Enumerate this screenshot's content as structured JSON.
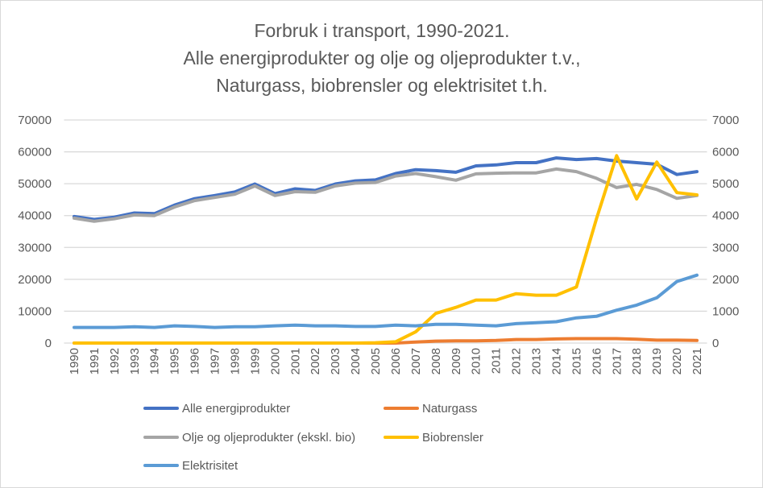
{
  "chart_data": {
    "type": "line",
    "title": [
      "Forbruk i transport, 1990-2021.",
      "Alle energiprodukter og olje og oljeprodukter t.v.,",
      "Naturgass, biobrensler og elektrisitet t.h."
    ],
    "categories": [
      "1990",
      "1991",
      "1992",
      "1993",
      "1994",
      "1995",
      "1996",
      "1997",
      "1998",
      "1999",
      "2000",
      "2001",
      "2002",
      "2003",
      "2004",
      "2005",
      "2006",
      "2007",
      "2008",
      "2009",
      "2010",
      "2011",
      "2012",
      "2013",
      "2014",
      "2015",
      "2016",
      "2017",
      "2018",
      "2019",
      "2020",
      "2021"
    ],
    "y_left": {
      "range": [
        0,
        70000
      ],
      "ticks": [
        "0",
        "10000",
        "20000",
        "30000",
        "40000",
        "50000",
        "60000",
        "70000"
      ]
    },
    "y_right": {
      "range": [
        0,
        7000
      ],
      "ticks": [
        "0",
        "1000",
        "2000",
        "3000",
        "4000",
        "5000",
        "6000",
        "7000"
      ]
    },
    "grid": true,
    "legend_position": "bottom",
    "series": [
      {
        "name": "Alle energiprodukter",
        "axis": "left",
        "color": "#4472c4",
        "values": [
          39700,
          38800,
          39500,
          40800,
          40600,
          43300,
          45300,
          46300,
          47400,
          49900,
          46900,
          48400,
          47900,
          49900,
          50900,
          51200,
          53200,
          54400,
          54100,
          53600,
          55600,
          55900,
          56600,
          56600,
          58100,
          57600,
          57900,
          57100,
          56600,
          56100,
          52900,
          53800
        ]
      },
      {
        "name": "Naturgass",
        "axis": "right",
        "color": "#ed7d31",
        "values": [
          0,
          0,
          0,
          0,
          0,
          0,
          0,
          0,
          0,
          0,
          0,
          0,
          0,
          0,
          0,
          0,
          0,
          30,
          60,
          70,
          70,
          80,
          110,
          110,
          130,
          140,
          140,
          140,
          120,
          90,
          90,
          80
        ]
      },
      {
        "name": "Olje og oljeprodukter (ekskl. bio)",
        "axis": "left",
        "color": "#a5a5a5",
        "values": [
          39200,
          38200,
          39000,
          40200,
          40000,
          42700,
          44700,
          45700,
          46700,
          49300,
          46300,
          47500,
          47300,
          49300,
          50200,
          50400,
          52400,
          53200,
          52200,
          51100,
          53100,
          53300,
          53400,
          53400,
          54600,
          53800,
          51700,
          48800,
          49800,
          48200,
          45400,
          46300
        ]
      },
      {
        "name": "Biobrensler",
        "axis": "right",
        "color": "#ffc000",
        "values": [
          0,
          0,
          0,
          0,
          0,
          0,
          0,
          0,
          0,
          0,
          0,
          0,
          0,
          0,
          0,
          10,
          40,
          350,
          930,
          1120,
          1350,
          1350,
          1550,
          1500,
          1500,
          1760,
          3900,
          5880,
          4520,
          5680,
          4720,
          4650
        ]
      },
      {
        "name": "Elektrisitet",
        "axis": "right",
        "color": "#5b9bd5",
        "values": [
          490,
          490,
          490,
          510,
          490,
          540,
          520,
          490,
          510,
          510,
          540,
          560,
          540,
          540,
          520,
          520,
          560,
          540,
          590,
          590,
          560,
          540,
          610,
          640,
          670,
          790,
          840,
          1030,
          1190,
          1420,
          1930,
          2130
        ]
      }
    ]
  }
}
